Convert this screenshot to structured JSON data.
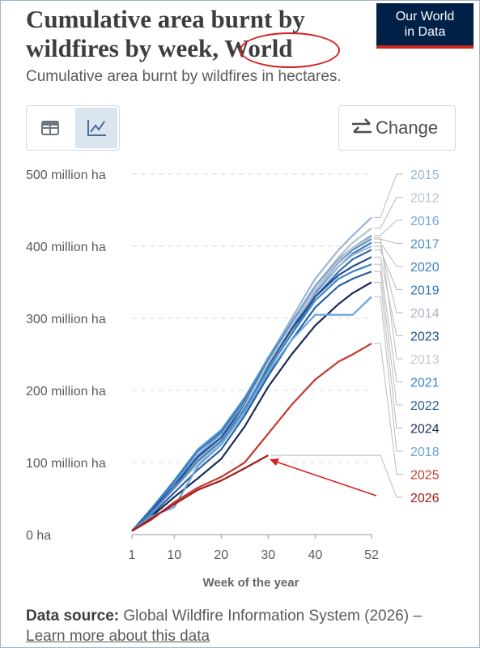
{
  "chart_data": {
    "type": "line",
    "title": "Cumulative area burnt by wildfires by week, World",
    "subtitle": "Cumulative area burnt by wildfires in hectares.",
    "x_label": "Week of the year",
    "x": [
      1,
      5,
      10,
      15,
      20,
      25,
      30,
      35,
      40,
      45,
      48,
      52
    ],
    "xlim": [
      1,
      52
    ],
    "xticks": [
      1,
      10,
      20,
      30,
      40,
      52
    ],
    "ylim": [
      0,
      500000000
    ],
    "yticks": [
      {
        "value": 0,
        "label": "0 ha"
      },
      {
        "value": 100000000,
        "label": "100 million ha"
      },
      {
        "value": 200000000,
        "label": "200 million ha"
      },
      {
        "value": 300000000,
        "label": "300 million ha"
      },
      {
        "value": 400000000,
        "label": "400 million ha"
      },
      {
        "value": 500000000,
        "label": "500 million ha"
      }
    ],
    "grid": true,
    "series": [
      {
        "name": "2015",
        "color": "#9db4d6",
        "values": [
          5000000,
          32000000,
          70000000,
          105000000,
          135000000,
          185000000,
          245000000,
          300000000,
          355000000,
          395000000,
          415000000,
          440000000
        ]
      },
      {
        "name": "2012",
        "color": "#b9c3d1",
        "values": [
          5000000,
          30000000,
          68000000,
          102000000,
          132000000,
          182000000,
          242000000,
          295000000,
          345000000,
          385000000,
          405000000,
          425000000
        ]
      },
      {
        "name": "2016",
        "color": "#78a5d6",
        "values": [
          5000000,
          33000000,
          72000000,
          110000000,
          140000000,
          188000000,
          245000000,
          295000000,
          345000000,
          382000000,
          398000000,
          415000000
        ]
      },
      {
        "name": "2017",
        "color": "#4d8fcb",
        "values": [
          5000000,
          35000000,
          75000000,
          118000000,
          145000000,
          190000000,
          245000000,
          292000000,
          340000000,
          378000000,
          395000000,
          410000000
        ]
      },
      {
        "name": "2020",
        "color": "#3b7fc2",
        "values": [
          5000000,
          34000000,
          74000000,
          115000000,
          142000000,
          186000000,
          240000000,
          288000000,
          335000000,
          372000000,
          390000000,
          405000000
        ]
      },
      {
        "name": "2019",
        "color": "#2e70b6",
        "values": [
          5000000,
          30000000,
          66000000,
          100000000,
          128000000,
          175000000,
          230000000,
          280000000,
          330000000,
          365000000,
          382000000,
          395000000
        ]
      },
      {
        "name": "2014",
        "color": "#a9b5c5",
        "values": [
          5000000,
          28000000,
          64000000,
          98000000,
          125000000,
          172000000,
          228000000,
          282000000,
          338000000,
          372000000,
          388000000,
          400000000
        ]
      },
      {
        "name": "2023",
        "color": "#1f4e8e",
        "values": [
          5000000,
          32000000,
          68000000,
          108000000,
          135000000,
          180000000,
          235000000,
          285000000,
          330000000,
          360000000,
          372000000,
          385000000
        ]
      },
      {
        "name": "2013",
        "color": "#c2c9d3",
        "values": [
          5000000,
          29000000,
          66000000,
          100000000,
          128000000,
          178000000,
          238000000,
          290000000,
          340000000,
          380000000,
          398000000,
          412000000
        ]
      },
      {
        "name": "2021",
        "color": "#3c83c5",
        "values": [
          5000000,
          30000000,
          65000000,
          102000000,
          130000000,
          175000000,
          230000000,
          278000000,
          325000000,
          355000000,
          365000000,
          375000000
        ]
      },
      {
        "name": "2022",
        "color": "#2a5f9f",
        "values": [
          5000000,
          26000000,
          58000000,
          90000000,
          118000000,
          165000000,
          220000000,
          270000000,
          315000000,
          345000000,
          355000000,
          365000000
        ]
      },
      {
        "name": "2024",
        "color": "#1b2a5b",
        "values": [
          5000000,
          24000000,
          52000000,
          78000000,
          105000000,
          150000000,
          205000000,
          250000000,
          290000000,
          320000000,
          335000000,
          350000000
        ]
      },
      {
        "name": "2018",
        "color": "#68a4dc",
        "values": [
          5000000,
          25000000,
          38000000,
          95000000,
          125000000,
          170000000,
          225000000,
          270000000,
          305000000,
          305000000,
          305000000,
          330000000
        ]
      },
      {
        "name": "2025",
        "color": "#c23a2c",
        "values": [
          5000000,
          20000000,
          45000000,
          65000000,
          80000000,
          100000000,
          140000000,
          180000000,
          215000000,
          240000000,
          250000000,
          265000000
        ]
      },
      {
        "name": "2026",
        "color": "#a21b1b",
        "values": [
          5000000,
          22000000,
          42000000,
          62000000,
          75000000,
          92000000,
          110000000,
          null,
          null,
          null,
          null,
          null
        ]
      }
    ]
  },
  "logo": {
    "line1": "Our World",
    "line2": "in Data"
  },
  "controls": {
    "change": "Change"
  },
  "footer": {
    "source_label": "Data source:",
    "source_text": "Global Wildfire Information System (2026) –",
    "learn_more": "Learn more about this data"
  }
}
